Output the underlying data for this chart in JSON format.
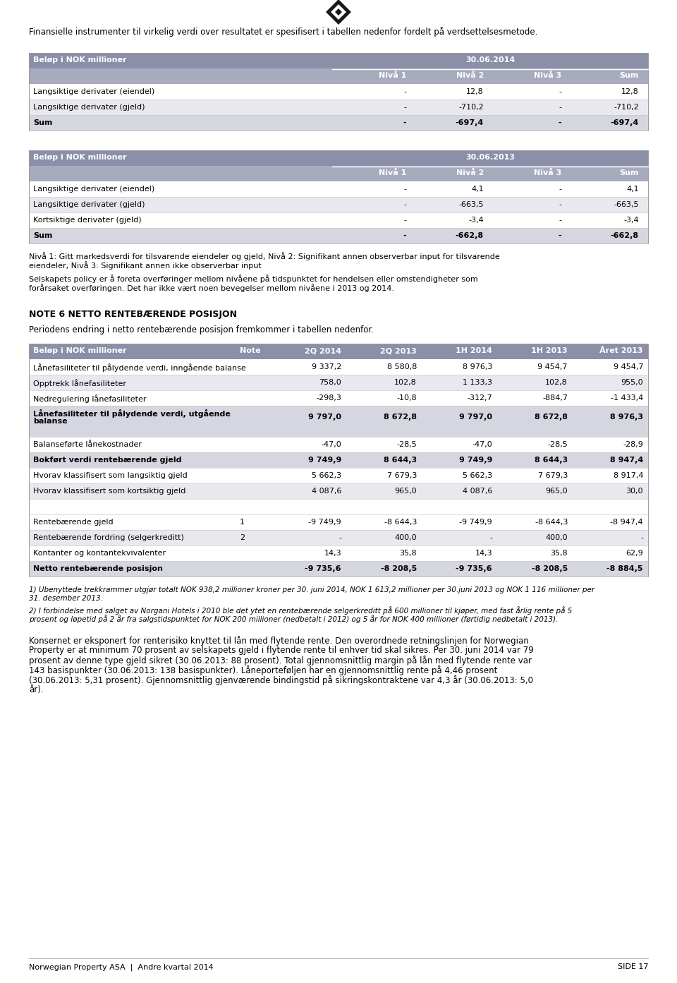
{
  "page_bg": "#ffffff",
  "header_color": "#8b8fa8",
  "subheader_color": "#a8abbe",
  "row_alt_color": "#e8e9ef",
  "intro_text_l1": "Finansielle instrumenter til virkelig verdi over resultatet er spesifisert i tabellen nedenfor fordelt på verdsettelsesmetode.",
  "table1_title": "Beløp i NOK millioner",
  "table1_date": "30.06.2014",
  "table1_cols": [
    "Nivå 1",
    "Nivå 2",
    "Nivå 3",
    "Sum"
  ],
  "table1_rows": [
    {
      "label": "Langsiktige derivater (eiendel)",
      "bold": false,
      "values": [
        "-",
        "12,8",
        "-",
        "12,8"
      ]
    },
    {
      "label": "Langsiktige derivater (gjeld)",
      "bold": false,
      "values": [
        "-",
        "-710,2",
        "-",
        "-710,2"
      ]
    },
    {
      "label": "Sum",
      "bold": true,
      "values": [
        "-",
        "-697,4",
        "-",
        "-697,4"
      ]
    }
  ],
  "table2_title": "Beløp i NOK millioner",
  "table2_date": "30.06.2013",
  "table2_cols": [
    "Nivå 1",
    "Nivå 2",
    "Nivå 3",
    "Sum"
  ],
  "table2_rows": [
    {
      "label": "Langsiktige derivater (eiendel)",
      "bold": false,
      "values": [
        "-",
        "4,1",
        "-",
        "4,1"
      ]
    },
    {
      "label": "Langsiktige derivater (gjeld)",
      "bold": false,
      "values": [
        "-",
        "-663,5",
        "-",
        "-663,5"
      ]
    },
    {
      "label": "Kortsiktige derivater (gjeld)",
      "bold": false,
      "values": [
        "-",
        "-3,4",
        "-",
        "-3,4"
      ]
    },
    {
      "label": "Sum",
      "bold": true,
      "values": [
        "-",
        "-662,8",
        "-",
        "-662,8"
      ]
    }
  ],
  "note1_l1": "Nivå 1: Gitt markedsverdi for tilsvarende eiendeler og gjeld, Nivå 2: Signifikant annen observerbar input for tilsvarende",
  "note1_l2": "eiendeler, Nivå 3: Signifikant annen ikke observerbar input",
  "note2_l1": "Selskapets policy er å foreta overføringer mellom nivåene på tidspunktet for hendelsen eller omstendigheter som",
  "note2_l2": "forårsaket overføringen. Det har ikke vært noen bevegelser mellom nivåene i 2013 og 2014.",
  "note6_title": "NOTE 6 NETTO RENTEBÆRENDE POSISJON",
  "note6_intro": "Periodens endring i netto rentebærende posisjon fremkommer i tabellen nedenfor.",
  "table3_title": "Beløp i NOK millioner",
  "table3_note_col": "Note",
  "table3_cols": [
    "2Q 2014",
    "2Q 2013",
    "1H 2014",
    "1H 2013",
    "Året 2013"
  ],
  "table3_rows": [
    {
      "label": "Lånefasiliteter til pålydende verdi, inngående balanse",
      "bold": false,
      "note": "",
      "double_h": false,
      "values": [
        "9 337,2",
        "8 580,8",
        "8 976,3",
        "9 454,7",
        "9 454,7"
      ]
    },
    {
      "label": "Opptrekk lånefasiliteter",
      "bold": false,
      "note": "",
      "double_h": false,
      "values": [
        "758,0",
        "102,8",
        "1 133,3",
        "102,8",
        "955,0"
      ]
    },
    {
      "label": "Nedregulering lånefasiliteter",
      "bold": false,
      "note": "",
      "double_h": false,
      "values": [
        "-298,3",
        "-10,8",
        "-312,7",
        "-884,7",
        "-1 433,4"
      ]
    },
    {
      "label": "Lånefasiliteter til pålydende verdi, utgående",
      "label2": "balanse",
      "bold": true,
      "note": "",
      "double_h": true,
      "values": [
        "9 797,0",
        "8 672,8",
        "9 797,0",
        "8 672,8",
        "8 976,3"
      ]
    },
    {
      "label": "Balanseførte lånekostnader",
      "bold": false,
      "note": "",
      "double_h": false,
      "values": [
        "-47,0",
        "-28,5",
        "-47,0",
        "-28,5",
        "-28,9"
      ]
    },
    {
      "label": "Bokført verdi rentebærende gjeld",
      "bold": true,
      "note": "",
      "double_h": false,
      "values": [
        "9 749,9",
        "8 644,3",
        "9 749,9",
        "8 644,3",
        "8 947,4"
      ]
    },
    {
      "label": "Hvorav klassifisert som langsiktig gjeld",
      "bold": false,
      "note": "",
      "double_h": false,
      "values": [
        "5 662,3",
        "7 679,3",
        "5 662,3",
        "7 679,3",
        "8 917,4"
      ]
    },
    {
      "label": "Hvorav klassifisert som kortsiktig gjeld",
      "bold": false,
      "note": "",
      "double_h": false,
      "values": [
        "4 087,6",
        "965,0",
        "4 087,6",
        "965,0",
        "30,0"
      ]
    },
    {
      "label": "",
      "bold": false,
      "note": "",
      "double_h": false,
      "values": [
        "",
        "",
        "",
        "",
        ""
      ]
    },
    {
      "label": "Rentebærende gjeld",
      "bold": false,
      "note": "1",
      "double_h": false,
      "values": [
        "-9 749,9",
        "-8 644,3",
        "-9 749,9",
        "-8 644,3",
        "-8 947,4"
      ]
    },
    {
      "label": "Rentebærende fordring (selgerkreditt)",
      "bold": false,
      "note": "2",
      "double_h": false,
      "values": [
        "-",
        "400,0",
        "-",
        "400,0",
        "-"
      ]
    },
    {
      "label": "Kontanter og kontantekvivalenter",
      "bold": false,
      "note": "",
      "double_h": false,
      "values": [
        "14,3",
        "35,8",
        "14,3",
        "35,8",
        "62,9"
      ]
    },
    {
      "label": "Netto rentebærende posisjon",
      "bold": true,
      "note": "",
      "double_h": false,
      "values": [
        "-9 735,6",
        "-8 208,5",
        "-9 735,6",
        "-8 208,5",
        "-8 884,5"
      ]
    }
  ],
  "fn1_l1": "1) Ubenyttede trekkrammer utgjør totalt NOK 938,2 millioner kroner per 30. juni 2014, NOK 1 613,2 millioner per 30.juni 2013 og NOK 1 116 millioner per",
  "fn1_l2": "31. desember 2013.",
  "fn2_l1": "2) I forbindelse med salget av Norgani Hotels i 2010 ble det ytet en rentebærende selgerkreditt på 600 millioner til kjøper, med fast årlig rente på 5",
  "fn2_l2": "prosent og løpetid på 2 år fra salgstidspunktet for NOK 200 millioner (nedbetalt i 2012) og 5 år for NOK 400 millioner (førtidig nedbetalt i 2013).",
  "body_lines": [
    "Konsernet er eksponert for renterisiko knyttet til lån med flytende rente. Den overordnede retningslinjen for Norwegian",
    "Property er at minimum 70 prosent av selskapets gjeld i flytende rente til enhver tid skal sikres. Per 30. juni 2014 var 79",
    "prosent av denne type gjeld sikret (30.06.2013: 88 prosent). Total gjennomsnittlig margin på lån med flytende rente var",
    "143 basispunkter (30.06.2013: 138 basispunkter). Låneporteføljen har en gjennomsnittlig rente på 4,46 prosent",
    "(30.06.2013: 5,31 prosent). Gjennomsnittlig gjenværende bindingstid på sikringskontraktene var 4,3 år (30.06.2013: 5,0",
    "år)."
  ],
  "footer_left": "Norwegian Property ASA  |  Andre kvartal 2014",
  "footer_right": "SIDE 17"
}
